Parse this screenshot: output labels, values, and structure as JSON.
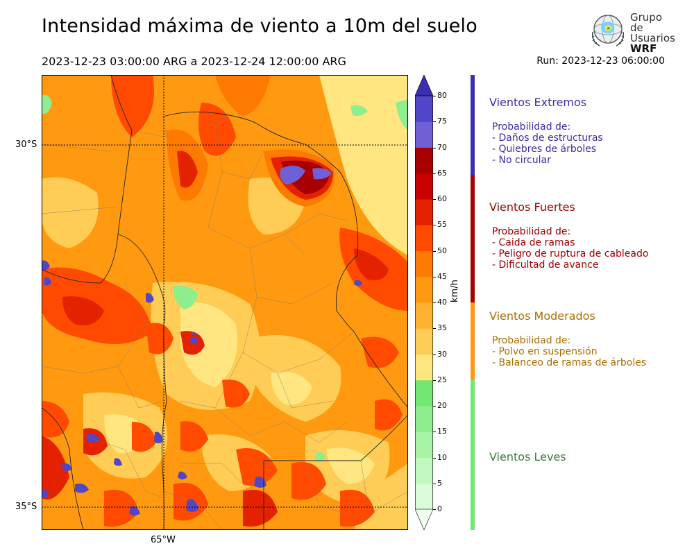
{
  "title": "Intensidad máxima de viento a 10m del suelo",
  "period": "2023-12-23 03:00:00 ARG  a  2023-12-24 12:00:00 ARG",
  "run": "Run: 2023-12-23 06:00:00",
  "logo": {
    "line1": "Grupo de",
    "line2": "Usuarios",
    "line3": "WRF"
  },
  "map": {
    "lat_labels": [
      "30°S",
      "35°S"
    ],
    "lon_labels": [
      "65°W"
    ]
  },
  "colorbar": {
    "unit": "km/h",
    "ticks": [
      "0",
      "5",
      "10",
      "15",
      "20",
      "25",
      "30",
      "35",
      "40",
      "45",
      "50",
      "55",
      "60",
      "65",
      "70",
      "75",
      "80"
    ],
    "colors": [
      "#f0fff0",
      "#d9fcd9",
      "#c0f8c0",
      "#a8f3a8",
      "#8eee8e",
      "#72e872",
      "#ffe680",
      "#ffcc55",
      "#ffb030",
      "#ff9a10",
      "#ff7a00",
      "#ff4a00",
      "#e52200",
      "#c80000",
      "#a80000",
      "#7060d8",
      "#5046c8",
      "#3a2fb0"
    ]
  },
  "categories": [
    {
      "title": "Vientos Extremos",
      "color": "#3c2ca8",
      "sub": [
        "Probabilidad de:",
        "- Daños de estructuras",
        "- Quiebres de árboles",
        "- No circular"
      ]
    },
    {
      "title": "Vientos Fuertes",
      "color": "#a00000",
      "sub": [
        "Probabilidad de:",
        "- Caida de ramas",
        "- Peligro de ruptura de cableado",
        "- Dificultad de avance"
      ]
    },
    {
      "title": "Vientos Moderados",
      "color": "#a86e00",
      "sub": [
        "Probabilidad de:",
        "- Polvo en suspensión",
        "- Balanceo de ramas de árboles"
      ]
    },
    {
      "title": "Vientos Leves",
      "color": "#3b7d3b",
      "sub": []
    }
  ]
}
